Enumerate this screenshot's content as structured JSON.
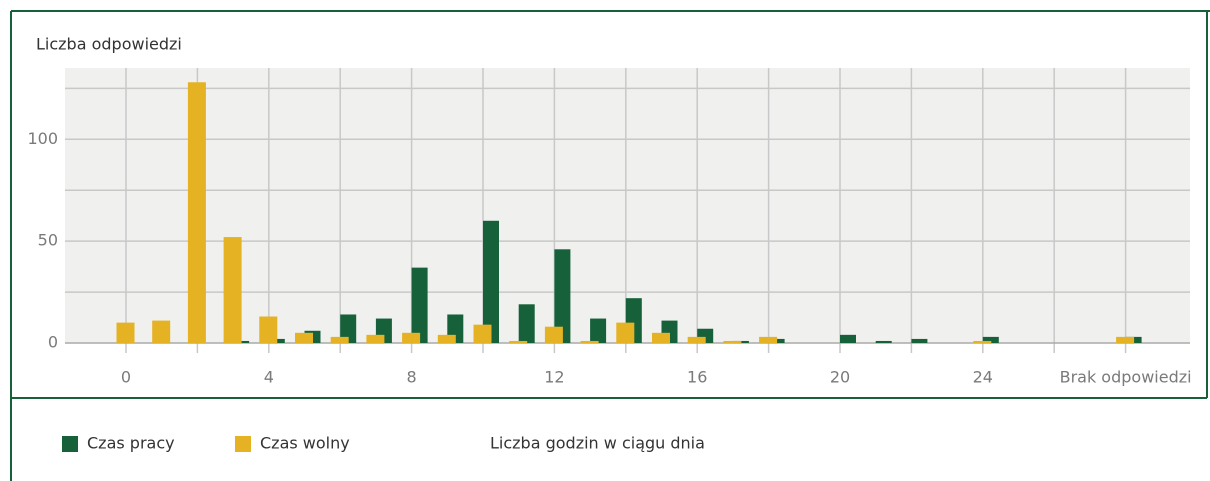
{
  "chart_data": {
    "type": "bar",
    "ylabel": "Liczba odpowiedzi",
    "xlabel": "Liczba godzin w ciągu dnia",
    "categories": [
      "0",
      null,
      null,
      null,
      "4",
      null,
      null,
      null,
      "8",
      null,
      null,
      null,
      "12",
      null,
      null,
      null,
      "16",
      null,
      null,
      null,
      "20",
      null,
      null,
      null,
      "24",
      null,
      null,
      null,
      "Brak odpowiedzi"
    ],
    "series": [
      {
        "name": "Czas pracy",
        "color": "#16613a",
        "values": [
          0,
          0,
          0,
          1,
          2,
          6,
          14,
          12,
          37,
          14,
          60,
          19,
          46,
          12,
          22,
          11,
          7,
          1,
          2,
          0,
          4,
          1,
          2,
          0,
          3,
          null,
          null,
          null,
          3
        ]
      },
      {
        "name": "Czas wolny",
        "color": "#e5b223",
        "values": [
          10,
          11,
          128,
          52,
          13,
          5,
          3,
          4,
          5,
          4,
          9,
          1,
          8,
          1,
          10,
          5,
          3,
          1,
          3,
          0,
          0,
          0,
          0,
          0,
          1,
          null,
          null,
          null,
          3
        ]
      }
    ],
    "ylim": [
      0,
      135
    ],
    "yticks": [
      0,
      50,
      100
    ],
    "minor_yticks": [
      25,
      75,
      125
    ],
    "grid": true,
    "xgrid_every": 2,
    "legend": "bottom"
  }
}
